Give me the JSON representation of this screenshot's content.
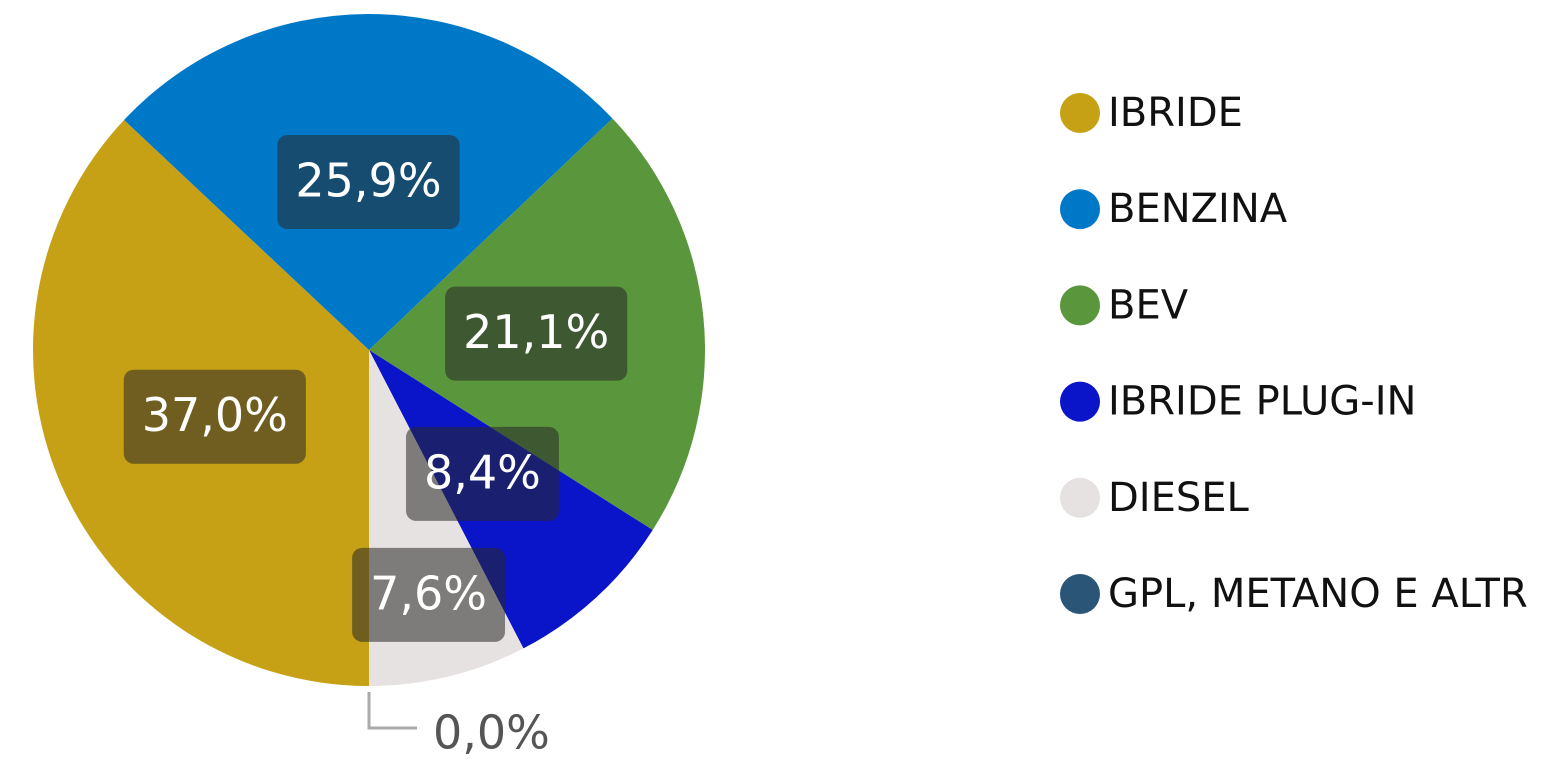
{
  "chart_data": {
    "type": "pie",
    "categories": [
      "IBRIDE",
      "BENZINA",
      "BEV",
      "IBRIDE PLUG-IN",
      "DIESEL",
      "GPL, METANO E ALTR"
    ],
    "values": [
      37.0,
      25.9,
      21.1,
      8.4,
      7.6,
      0.0
    ],
    "value_labels": [
      "37,0%",
      "25,9%",
      "21,1%",
      "8,4%",
      "7,6%",
      "0,0%"
    ],
    "colors": [
      "#c6a015",
      "#0078c8",
      "#5a963c",
      "#0a14c8",
      "#e6e2e1",
      "#2a5577"
    ],
    "legend": "right"
  }
}
